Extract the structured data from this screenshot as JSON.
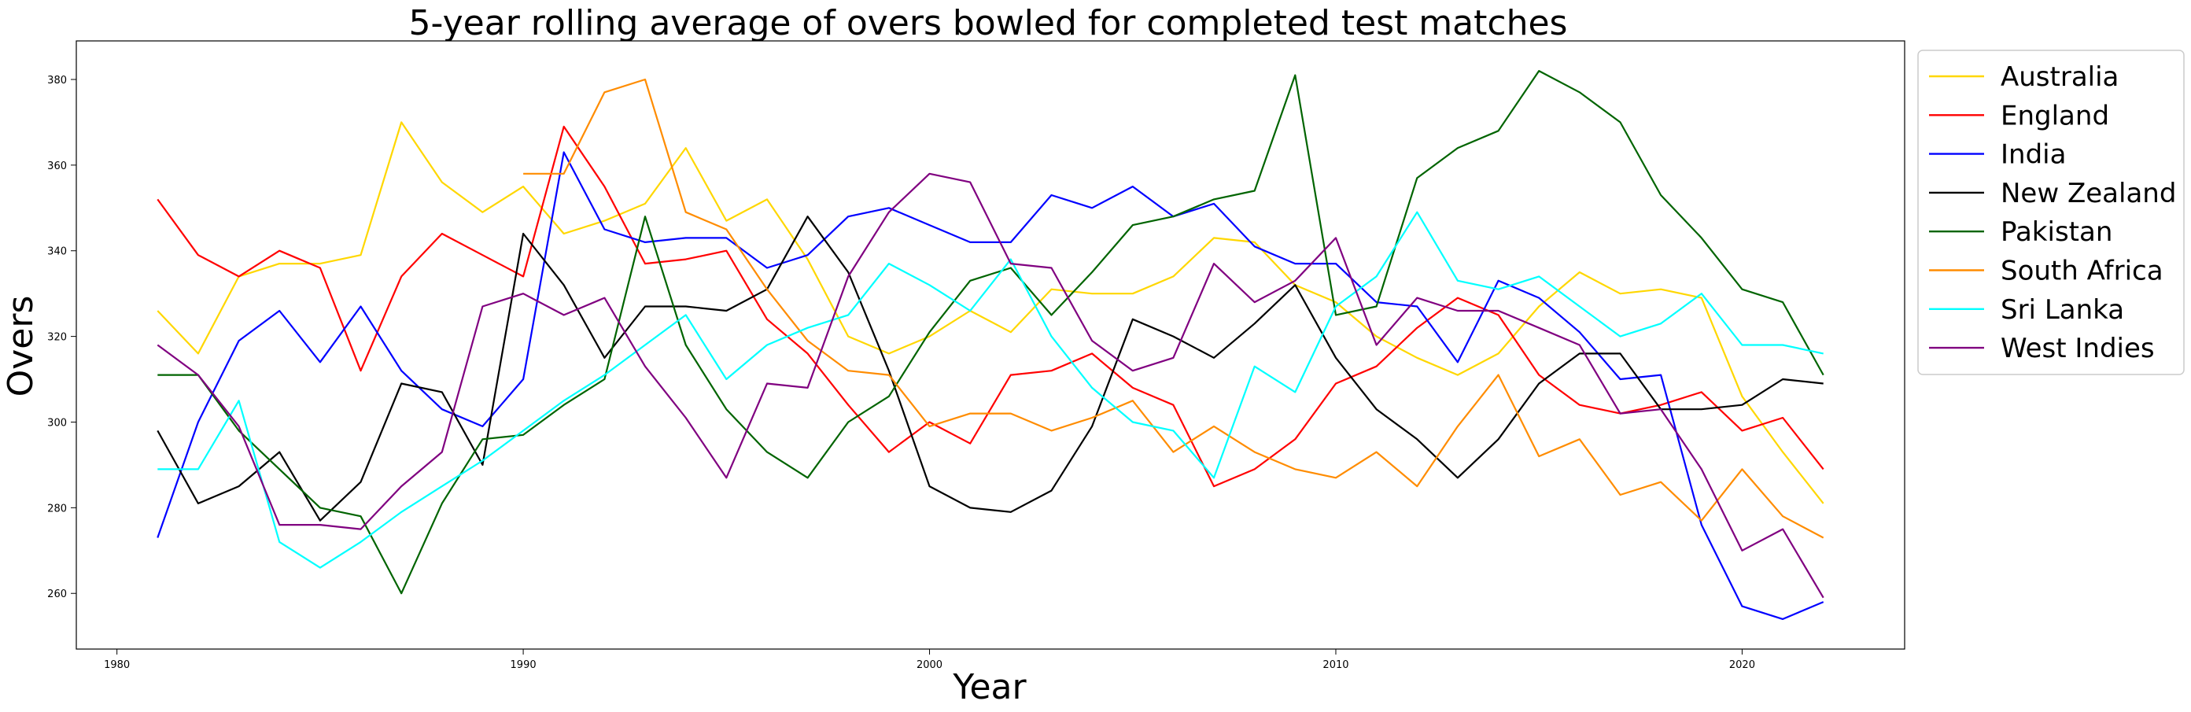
{
  "chart_data": {
    "type": "line",
    "title": "5-year rolling average of overs bowled for completed test matches",
    "xlabel": "Year",
    "ylabel": "Overs",
    "xlim": [
      1979,
      2024
    ],
    "ylim": [
      247,
      389
    ],
    "xticks": [
      1980,
      1990,
      2000,
      2010,
      2020
    ],
    "yticks": [
      260,
      280,
      300,
      320,
      340,
      360,
      380
    ],
    "legend_position": "outside-right-top",
    "grid": false,
    "x": [
      1981,
      1982,
      1983,
      1984,
      1985,
      1986,
      1987,
      1988,
      1989,
      1990,
      1991,
      1992,
      1993,
      1994,
      1995,
      1996,
      1997,
      1998,
      1999,
      2000,
      2001,
      2002,
      2003,
      2004,
      2005,
      2006,
      2007,
      2008,
      2009,
      2010,
      2011,
      2012,
      2013,
      2014,
      2015,
      2016,
      2017,
      2018,
      2019,
      2020,
      2021,
      2022
    ],
    "series": [
      {
        "name": "Australia",
        "color": "#FFD700",
        "values": [
          326,
          316,
          334,
          337,
          337,
          339,
          370,
          356,
          349,
          355,
          344,
          347,
          351,
          364,
          347,
          352,
          338,
          320,
          316,
          320,
          326,
          321,
          331,
          330,
          330,
          334,
          343,
          342,
          332,
          328,
          320,
          315,
          311,
          316,
          327,
          335,
          330,
          331,
          329,
          306,
          293,
          281
        ]
      },
      {
        "name": "England",
        "color": "#FF0000",
        "values": [
          352,
          339,
          334,
          340,
          336,
          312,
          334,
          344,
          339,
          334,
          369,
          355,
          337,
          338,
          340,
          324,
          316,
          304,
          293,
          300,
          295,
          311,
          312,
          316,
          308,
          304,
          285,
          289,
          296,
          309,
          313,
          322,
          329,
          325,
          311,
          304,
          302,
          304,
          307,
          298,
          301,
          289
        ]
      },
      {
        "name": "India",
        "color": "#0000FF",
        "values": [
          273,
          300,
          319,
          326,
          314,
          327,
          312,
          303,
          299,
          310,
          363,
          345,
          342,
          343,
          343,
          336,
          339,
          348,
          350,
          346,
          342,
          342,
          353,
          350,
          355,
          348,
          351,
          341,
          337,
          337,
          328,
          327,
          314,
          333,
          329,
          321,
          310,
          311,
          276,
          257,
          254,
          258
        ]
      },
      {
        "name": "New Zealand",
        "color": "#000000",
        "values": [
          298,
          281,
          285,
          293,
          277,
          286,
          309,
          307,
          290,
          344,
          332,
          315,
          327,
          327,
          326,
          331,
          348,
          335,
          312,
          285,
          280,
          279,
          284,
          299,
          324,
          320,
          315,
          323,
          332,
          315,
          303,
          296,
          287,
          296,
          309,
          316,
          316,
          303,
          303,
          304,
          310,
          309
        ]
      },
      {
        "name": "Pakistan",
        "color": "#006400",
        "values": [
          311,
          311,
          298,
          289,
          280,
          278,
          260,
          281,
          296,
          297,
          304,
          310,
          348,
          318,
          303,
          293,
          287,
          300,
          306,
          321,
          333,
          336,
          325,
          335,
          346,
          348,
          352,
          354,
          381,
          325,
          327,
          357,
          364,
          368,
          382,
          377,
          370,
          353,
          343,
          331,
          328,
          311
        ]
      },
      {
        "name": "South Africa",
        "color": "#FF8C00",
        "values": [
          null,
          null,
          null,
          null,
          null,
          null,
          null,
          null,
          null,
          358,
          358,
          377,
          380,
          349,
          345,
          331,
          319,
          312,
          311,
          299,
          302,
          302,
          298,
          301,
          305,
          293,
          299,
          293,
          289,
          287,
          293,
          285,
          299,
          311,
          292,
          296,
          283,
          286,
          277,
          289,
          278,
          273
        ]
      },
      {
        "name": "Sri Lanka",
        "color": "#00FFFF",
        "values": [
          289,
          289,
          305,
          272,
          266,
          272,
          279,
          285,
          291,
          298,
          305,
          311,
          318,
          325,
          310,
          318,
          322,
          325,
          337,
          332,
          326,
          338,
          320,
          308,
          300,
          298,
          287,
          313,
          307,
          327,
          334,
          349,
          333,
          331,
          334,
          327,
          320,
          323,
          330,
          318,
          318,
          316
        ]
      },
      {
        "name": "West Indies",
        "color": "#800080",
        "values": [
          318,
          311,
          299,
          276,
          276,
          275,
          285,
          293,
          327,
          330,
          325,
          329,
          313,
          301,
          287,
          309,
          308,
          334,
          349,
          358,
          356,
          337,
          336,
          319,
          312,
          315,
          337,
          328,
          333,
          343,
          318,
          329,
          326,
          326,
          322,
          318,
          302,
          303,
          289,
          270,
          275,
          259
        ]
      }
    ]
  }
}
